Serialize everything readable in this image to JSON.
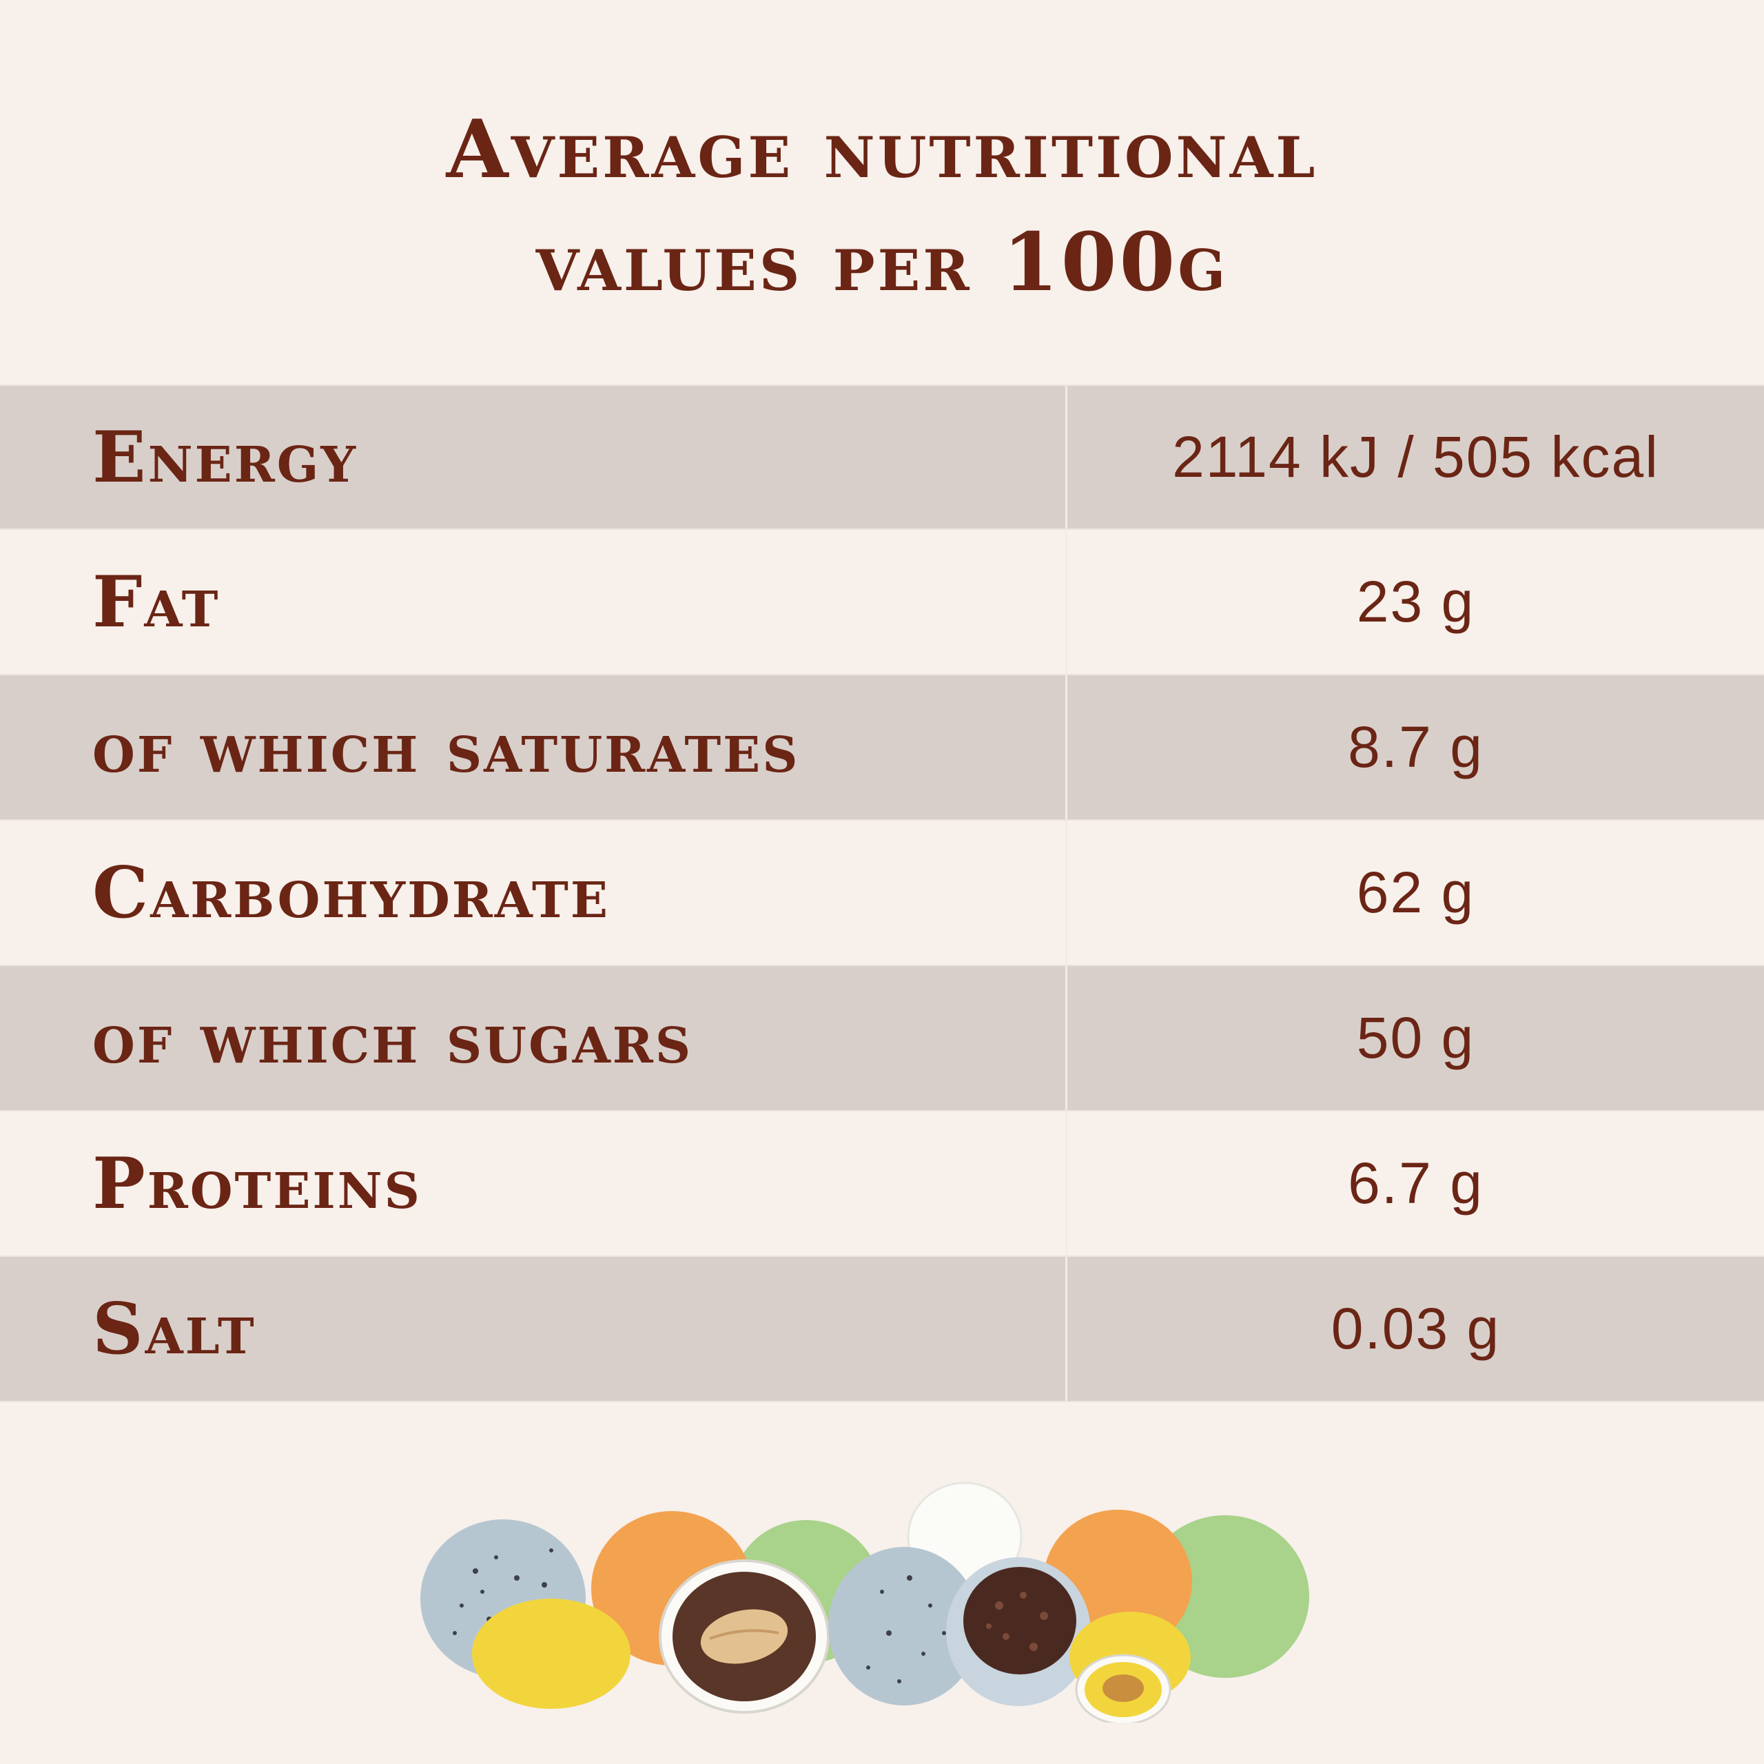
{
  "title": {
    "line1": "Average nutritional",
    "line2": "values per 100g"
  },
  "nutrition": {
    "rows": [
      {
        "label": "Energy",
        "value": "2114 kJ / 505 kcal"
      },
      {
        "label": "Fat",
        "value": "23 g"
      },
      {
        "label": "of which saturates",
        "value": "8.7 g"
      },
      {
        "label": "Carbohydrate",
        "value": "62 g"
      },
      {
        "label": "of which sugars",
        "value": "50 g"
      },
      {
        "label": "Proteins",
        "value": "6.7 g"
      },
      {
        "label": "Salt",
        "value": "0.03 g"
      }
    ]
  },
  "colors": {
    "background": "#f7f0eb",
    "shaded_row": "#d8cfca",
    "text": "#6b2515"
  },
  "illustration": {
    "icon": "sugared-almonds-illustration-icon"
  }
}
